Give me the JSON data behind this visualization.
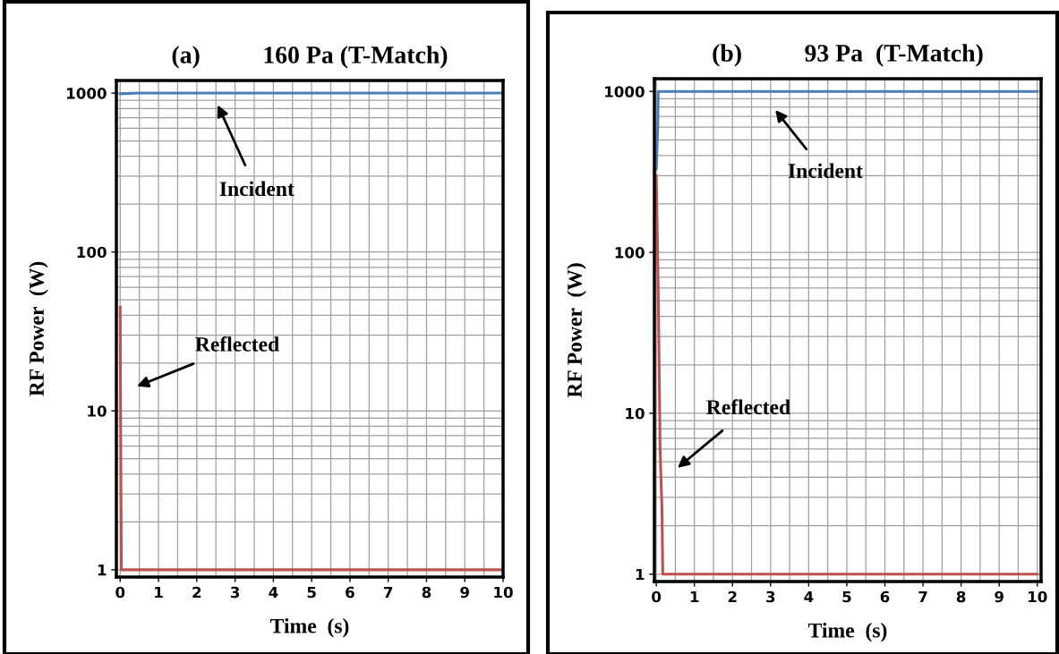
{
  "chart_data": [
    {
      "type": "line",
      "title": "(a)          160 Pa (T-Match)",
      "xlabel": "Time  (s)",
      "ylabel": "RF Power  (W)",
      "log": "y",
      "grid": true,
      "xlim": [
        -0.1,
        10
      ],
      "xticks": [
        0,
        1,
        2,
        3,
        4,
        5,
        6,
        7,
        8,
        9,
        10
      ],
      "ylim": [
        0.9,
        1200
      ],
      "yticks": [
        1,
        10,
        100,
        1000
      ],
      "series": [
        {
          "color": "#4a7ebb",
          "x": [
            0,
            0.5,
            1,
            2,
            3,
            4,
            5,
            6,
            7,
            8,
            9,
            10
          ],
          "values": [
            990,
            1000,
            1000,
            1000,
            1000,
            1000,
            1000,
            1000,
            1000,
            1000,
            1000,
            1000
          ]
        },
        {
          "color": "#c0504d",
          "x": [
            0,
            0.01,
            0.03,
            0.5,
            10
          ],
          "values": [
            45,
            10,
            1,
            1,
            1
          ]
        }
      ],
      "annotations": [
        "Incident",
        "Reflected"
      ]
    },
    {
      "type": "line",
      "title": "(b)          93 Pa  (T-Match)",
      "xlabel": "Time  (s)",
      "ylabel": "RF Power  (W)",
      "log": "y",
      "grid": true,
      "xlim": [
        -0.05,
        10.1
      ],
      "xticks": [
        0,
        1,
        2,
        3,
        4,
        5,
        6,
        7,
        8,
        9,
        10
      ],
      "ylim": [
        0.9,
        1200
      ],
      "yticks": [
        1,
        10,
        100,
        1000
      ],
      "series": [
        {
          "color": "#4a7ebb",
          "x": [
            0,
            0.02,
            0.04,
            0.05,
            1,
            2,
            3,
            4,
            5,
            6,
            7,
            8,
            9,
            10
          ],
          "values": [
            330,
            450,
            620,
            1000,
            1000,
            1000,
            1000,
            1000,
            1000,
            1000,
            1000,
            1000,
            1000,
            1000
          ]
        },
        {
          "color": "#c0504d",
          "x": [
            0,
            0.02,
            0.05,
            0.08,
            0.1,
            0.15,
            0.17,
            1,
            10
          ],
          "values": [
            300,
            160,
            60,
            16,
            6,
            2.5,
            1,
            1,
            1
          ]
        }
      ],
      "annotations": [
        "Incident",
        "Reflected"
      ]
    }
  ]
}
